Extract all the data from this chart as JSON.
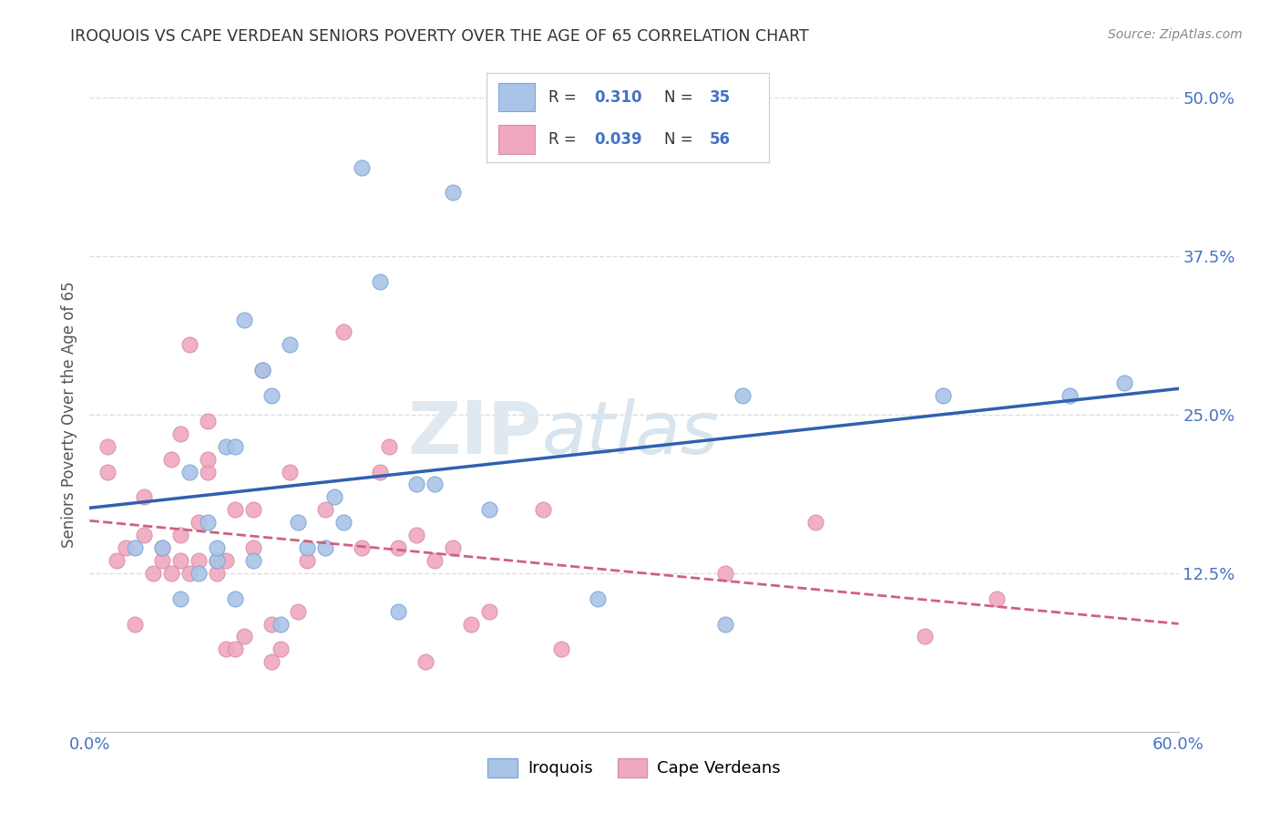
{
  "title": "IROQUOIS VS CAPE VERDEAN SENIORS POVERTY OVER THE AGE OF 65 CORRELATION CHART",
  "source": "Source: ZipAtlas.com",
  "ylabel": "Seniors Poverty Over the Age of 65",
  "xlim": [
    0,
    0.6
  ],
  "ylim": [
    0,
    0.5
  ],
  "xticks": [
    0.0,
    0.1,
    0.2,
    0.3,
    0.4,
    0.5,
    0.6
  ],
  "xticklabels": [
    "0.0%",
    "",
    "",
    "",
    "",
    "",
    "60.0%"
  ],
  "yticks_right": [
    0.125,
    0.25,
    0.375,
    0.5
  ],
  "ytick_labels_right": [
    "12.5%",
    "25.0%",
    "37.5%",
    "50.0%"
  ],
  "legend_labels": [
    "Iroquois",
    "Cape Verdeans"
  ],
  "iroquois_color": "#aac4e8",
  "cape_verdean_color": "#f0a8be",
  "iroquois_line_color": "#3060b0",
  "cape_verdean_line_color": "#d06080",
  "iroquois_R": 0.31,
  "iroquois_N": 35,
  "cape_verdean_R": 0.039,
  "cape_verdean_N": 56,
  "background_color": "#ffffff",
  "grid_color": "#dddddd",
  "watermark_zip": "ZIP",
  "watermark_atlas": "atlas",
  "title_color": "#333333",
  "axis_color": "#4472c4",
  "iroquois_x": [
    0.025,
    0.04,
    0.05,
    0.055,
    0.06,
    0.065,
    0.07,
    0.07,
    0.075,
    0.08,
    0.08,
    0.085,
    0.09,
    0.095,
    0.1,
    0.105,
    0.11,
    0.115,
    0.12,
    0.13,
    0.135,
    0.14,
    0.15,
    0.16,
    0.17,
    0.18,
    0.19,
    0.2,
    0.22,
    0.28,
    0.35,
    0.36,
    0.47,
    0.54,
    0.57
  ],
  "iroquois_y": [
    0.145,
    0.145,
    0.105,
    0.205,
    0.125,
    0.165,
    0.135,
    0.145,
    0.225,
    0.105,
    0.225,
    0.325,
    0.135,
    0.285,
    0.265,
    0.085,
    0.305,
    0.165,
    0.145,
    0.145,
    0.185,
    0.165,
    0.445,
    0.355,
    0.095,
    0.195,
    0.195,
    0.425,
    0.175,
    0.105,
    0.085,
    0.265,
    0.265,
    0.265,
    0.275
  ],
  "cape_verdean_x": [
    0.01,
    0.01,
    0.015,
    0.02,
    0.025,
    0.03,
    0.03,
    0.035,
    0.04,
    0.04,
    0.045,
    0.045,
    0.05,
    0.05,
    0.05,
    0.055,
    0.055,
    0.06,
    0.06,
    0.065,
    0.065,
    0.065,
    0.07,
    0.07,
    0.075,
    0.075,
    0.08,
    0.08,
    0.085,
    0.09,
    0.09,
    0.095,
    0.1,
    0.1,
    0.105,
    0.11,
    0.115,
    0.12,
    0.13,
    0.14,
    0.15,
    0.16,
    0.165,
    0.17,
    0.18,
    0.185,
    0.19,
    0.2,
    0.21,
    0.22,
    0.25,
    0.26,
    0.35,
    0.4,
    0.46,
    0.5
  ],
  "cape_verdean_y": [
    0.205,
    0.225,
    0.135,
    0.145,
    0.085,
    0.155,
    0.185,
    0.125,
    0.135,
    0.145,
    0.215,
    0.125,
    0.135,
    0.155,
    0.235,
    0.305,
    0.125,
    0.135,
    0.165,
    0.205,
    0.215,
    0.245,
    0.125,
    0.135,
    0.065,
    0.135,
    0.175,
    0.065,
    0.075,
    0.145,
    0.175,
    0.285,
    0.055,
    0.085,
    0.065,
    0.205,
    0.095,
    0.135,
    0.175,
    0.315,
    0.145,
    0.205,
    0.225,
    0.145,
    0.155,
    0.055,
    0.135,
    0.145,
    0.085,
    0.095,
    0.175,
    0.065,
    0.125,
    0.165,
    0.075,
    0.105
  ]
}
